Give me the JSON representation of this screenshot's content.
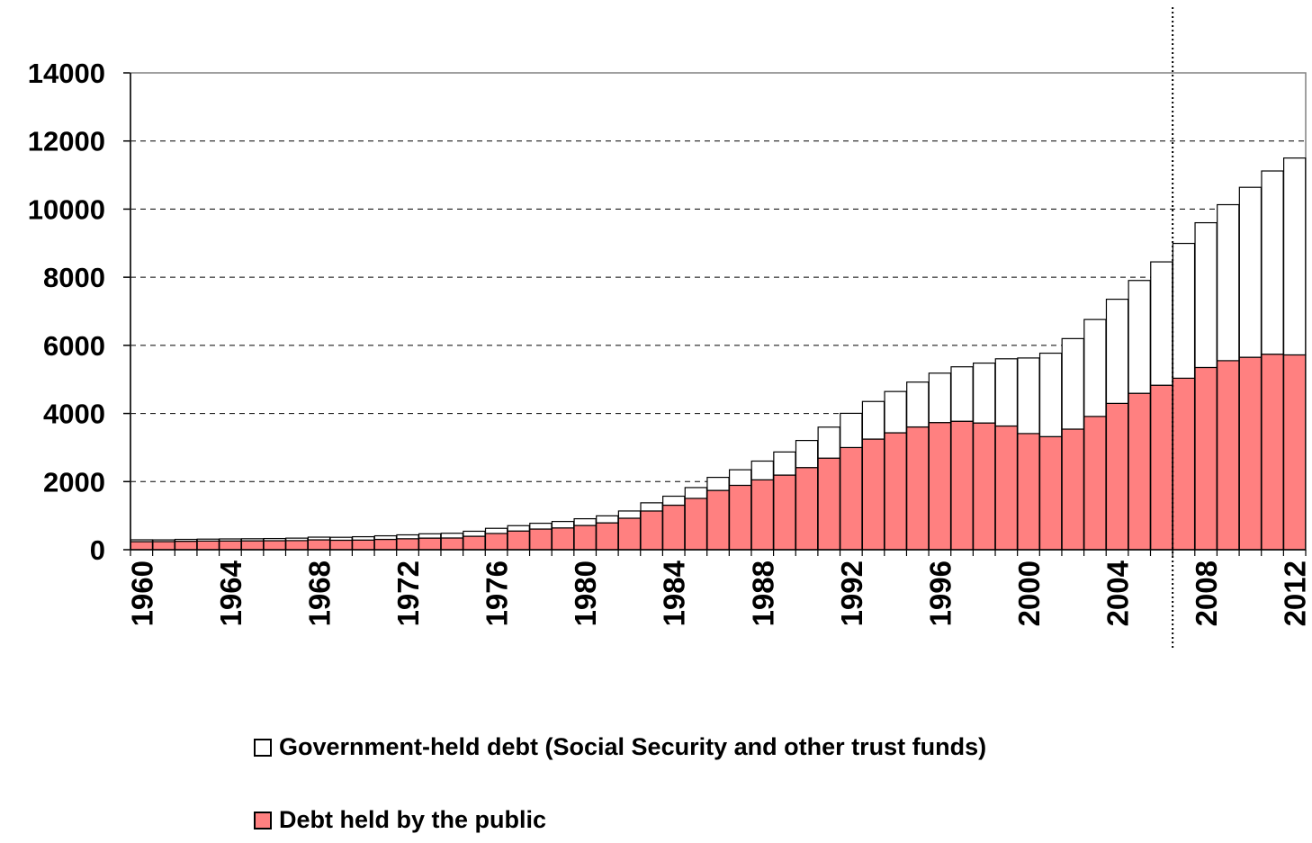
{
  "chart_data": {
    "type": "bar",
    "stacked": true,
    "title": "",
    "xlabel": "",
    "ylabel": "",
    "x": [
      1960,
      1961,
      1962,
      1963,
      1964,
      1965,
      1966,
      1967,
      1968,
      1969,
      1970,
      1971,
      1972,
      1973,
      1974,
      1975,
      1976,
      1977,
      1978,
      1979,
      1980,
      1981,
      1982,
      1983,
      1984,
      1985,
      1986,
      1987,
      1988,
      1989,
      1990,
      1991,
      1992,
      1993,
      1994,
      1995,
      1996,
      1997,
      1998,
      1999,
      2000,
      2001,
      2002,
      2003,
      2004,
      2005,
      2006,
      2007,
      2008,
      2009,
      2010,
      2011,
      2012
    ],
    "xticks": [
      "1960",
      "1964",
      "1968",
      "1972",
      "1976",
      "1980",
      "1984",
      "1988",
      "1992",
      "1996",
      "2000",
      "2004",
      "2008",
      "2012"
    ],
    "ylim": [
      0,
      14000
    ],
    "yticks": [
      "0",
      "2000",
      "4000",
      "6000",
      "8000",
      "10000",
      "12000",
      "14000"
    ],
    "grid": "horizontal dashed",
    "reference_line_x": 2006.5,
    "legend_position": "bottom",
    "series": [
      {
        "name": "Debt held by the public",
        "color": "#FF8080",
        "values": [
          237,
          238,
          248,
          254,
          257,
          261,
          264,
          267,
          290,
          278,
          283,
          303,
          322,
          341,
          344,
          395,
          477,
          549,
          607,
          640,
          712,
          789,
          925,
          1137,
          1307,
          1507,
          1741,
          1890,
          2052,
          2191,
          2412,
          2689,
          3000,
          3248,
          3433,
          3604,
          3734,
          3772,
          3721,
          3632,
          3410,
          3320,
          3540,
          3913,
          4296,
          4592,
          4829,
          5035,
          5350,
          5550,
          5650,
          5740,
          5720
        ]
      },
      {
        "name": "Government-held debt (Social Security and other trust funds)",
        "color": "#FFFFFF",
        "values": [
          54,
          51,
          55,
          57,
          60,
          61,
          64,
          73,
          79,
          87,
          98,
          105,
          114,
          126,
          139,
          147,
          151,
          157,
          169,
          189,
          197,
          205,
          212,
          240,
          264,
          317,
          383,
          457,
          550,
          678,
          795,
          910,
          1004,
          1104,
          1212,
          1317,
          1450,
          1598,
          1758,
          1973,
          2219,
          2450,
          2658,
          2846,
          3058,
          3313,
          3622,
          3958,
          4250,
          4580,
          4990,
          5380,
          5780
        ]
      }
    ]
  }
}
